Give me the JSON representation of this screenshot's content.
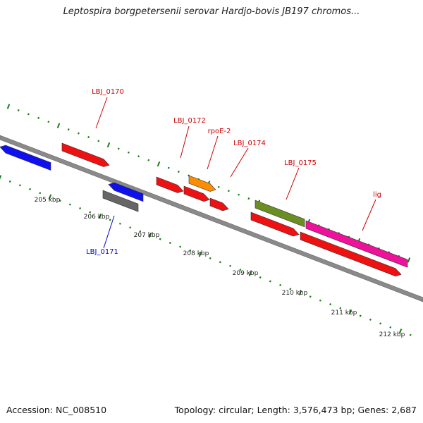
{
  "title": "Leptospira borgpetersenii serovar Hardjo-bovis JB197 chromos...",
  "footer": {
    "accession": "Accession: NC_008510",
    "topology": "Topology: circular; Length: 3,576,473 bp; Genes: 2,687"
  },
  "kbp_labels": [
    "205 kbp",
    "206 kbp",
    "207 kbp",
    "208 kbp",
    "209 kbp",
    "210 kbp",
    "211 kbp",
    "212 kbp"
  ],
  "genes": [
    {
      "label": "",
      "color": "#1010ee"
    },
    {
      "label": "LBJ_0170",
      "color": "#ee1111"
    },
    {
      "label": "LBJ_0171",
      "color": "#1010ee"
    },
    {
      "label": "",
      "color": "#666666"
    },
    {
      "label": "LBJ_0172",
      "color": "#ee1111"
    },
    {
      "label": "",
      "color": "#ee1111"
    },
    {
      "label": "rpoE-2",
      "color": "#ff8c00"
    },
    {
      "label": "LBJ_0174",
      "color": "#ee1111"
    },
    {
      "label": "LBJ_0175",
      "color": "#6b8e23"
    },
    {
      "label": "",
      "color": "#ee1111"
    },
    {
      "label": "lig",
      "color": "#ee1199"
    },
    {
      "label": "",
      "color": "#ee1111"
    }
  ],
  "colors": {
    "forward_label": "#cc0000",
    "reverse_label": "#0000cc",
    "backbone": "#888888",
    "tick": "#1a7a1a"
  }
}
